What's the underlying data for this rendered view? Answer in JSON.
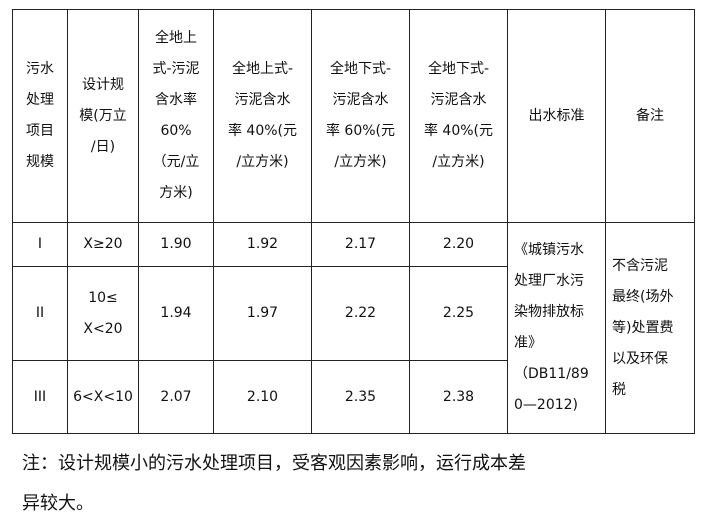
{
  "headers": [
    [
      "污水",
      "处理",
      "项目",
      "规模"
    ],
    [
      "设计规",
      "模(万立",
      "/日)"
    ],
    [
      "全地上",
      "式-污泥",
      "含水率",
      "60%",
      "（元/立",
      "方米)"
    ],
    [
      "全地上式-",
      "污泥含水",
      "率 40%(元",
      "/立方米)"
    ],
    [
      "全地下式-",
      "污泥含水",
      "率 60%(元",
      "/立方米)"
    ],
    [
      "全地下式-",
      "污泥含水",
      "率 40%(元",
      "/立方米)"
    ],
    [
      "出水标准"
    ],
    [
      "备注"
    ]
  ],
  "rows": [
    {
      "scale": [
        "I"
      ],
      "design": [
        "X≥20"
      ],
      "v1": "1.90",
      "v2": "1.92",
      "v3": "2.17",
      "v4": "2.20"
    },
    {
      "scale": [
        "II"
      ],
      "design": [
        "10≤",
        "X<20"
      ],
      "v1": "1.94",
      "v2": "1.97",
      "v3": "2.22",
      "v4": "2.25"
    },
    {
      "scale": [
        "III"
      ],
      "design": [
        "6<X<10"
      ],
      "v1": "2.07",
      "v2": "2.10",
      "v3": "2.35",
      "v4": "2.38"
    }
  ],
  "standard": [
    "《城镇污水",
    "处理厂水污",
    "染物排放标",
    "准》",
    "（DB11/89",
    "0—2012)"
  ],
  "remark": [
    "不含污泥",
    "最终(场外",
    "等)处置费",
    "以及环保",
    "税"
  ],
  "note": {
    "line1": "注：设计规模小的污水处理项目，受客观因素影响，运行成本差",
    "line2": "异较大。"
  }
}
